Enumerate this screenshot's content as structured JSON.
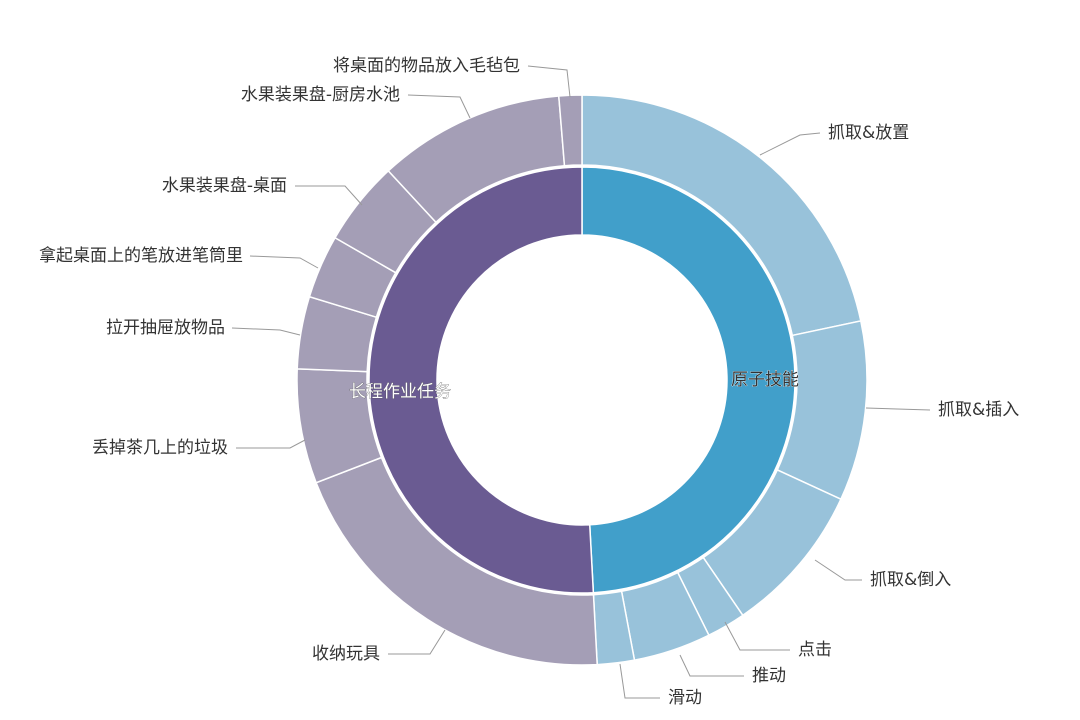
{
  "chart_data": {
    "type": "sunburst",
    "title": "",
    "start_angle": "top, clockwise",
    "colors": {
      "原子技能": "#419fca",
      "原子技能_children": "#98c2da",
      "长程作业任务": "#6a5b92",
      "长程作业任务_children": "#a49eb6"
    },
    "series": [
      {
        "name": "原子技能",
        "value": 49.2,
        "children": [
          {
            "name": "抓取&放置",
            "value": 21.7
          },
          {
            "name": "抓取&插入",
            "value": 10.2
          },
          {
            "name": "抓取&倒入",
            "value": 8.6
          },
          {
            "name": "点击",
            "value": 2.2
          },
          {
            "name": "推动",
            "value": 4.4
          },
          {
            "name": "滑动",
            "value": 2.1
          }
        ]
      },
      {
        "name": "长程作业任务",
        "value": 50.9,
        "children": [
          {
            "name": "收纳玩具",
            "value": 20.0
          },
          {
            "name": "丢掉茶几上的垃圾",
            "value": 6.5
          },
          {
            "name": "拉开抽屉放物品",
            "value": 4.1
          },
          {
            "name": "拿起桌面上的笔放进笔筒里",
            "value": 3.6
          },
          {
            "name": "水果装果盘-桌面",
            "value": 4.8
          },
          {
            "name": "水果装果盘-厨房水池",
            "value": 10.6
          },
          {
            "name": "将桌面的物品放入毛毡包",
            "value": 1.3
          }
        ]
      }
    ]
  }
}
